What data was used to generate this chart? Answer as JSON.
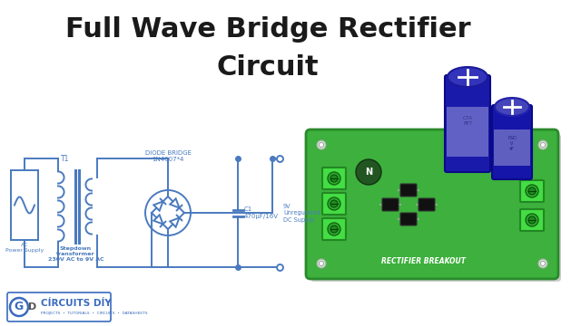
{
  "title_line1": "Full Wave Bridge Rectifier",
  "title_line2": "Circuit",
  "title_fontsize": 22,
  "title_fontweight": "bold",
  "title_color": "#1a1a1a",
  "bg_color": "#ffffff",
  "circuit_color": "#4a7abf",
  "circuit_lw": 1.4,
  "label_color": "#4a7abf",
  "label_fontsize": 5.0,
  "diode_bridge_label": "DIODE BRIDGE",
  "diode_bridge_model": "1N4007*4",
  "transformer_label": "T1",
  "ac_label": "AC\nPower Supply",
  "stepdown_label": "Stepdown\ntransformer\n230V AC to 9V AC",
  "cap_label": "C1\n470μF/16V",
  "output_label": "9V\nUnregulated\nDC Supply",
  "logo_text": "CÍRCUITS DÍY",
  "logo_subtext": "PROJECTS  •  TUTORIALS  •  CIRCUITS  •  DATASHEETS",
  "logo_color": "#3a6bbf",
  "border_color": "#3a6bbf",
  "border_lw": 1.2,
  "pcb_green": "#3db03d",
  "pcb_green_dark": "#2a8a2a",
  "cap_blue": "#2222bb",
  "cap_top": "#6666cc",
  "terminal_green": "#44cc44"
}
